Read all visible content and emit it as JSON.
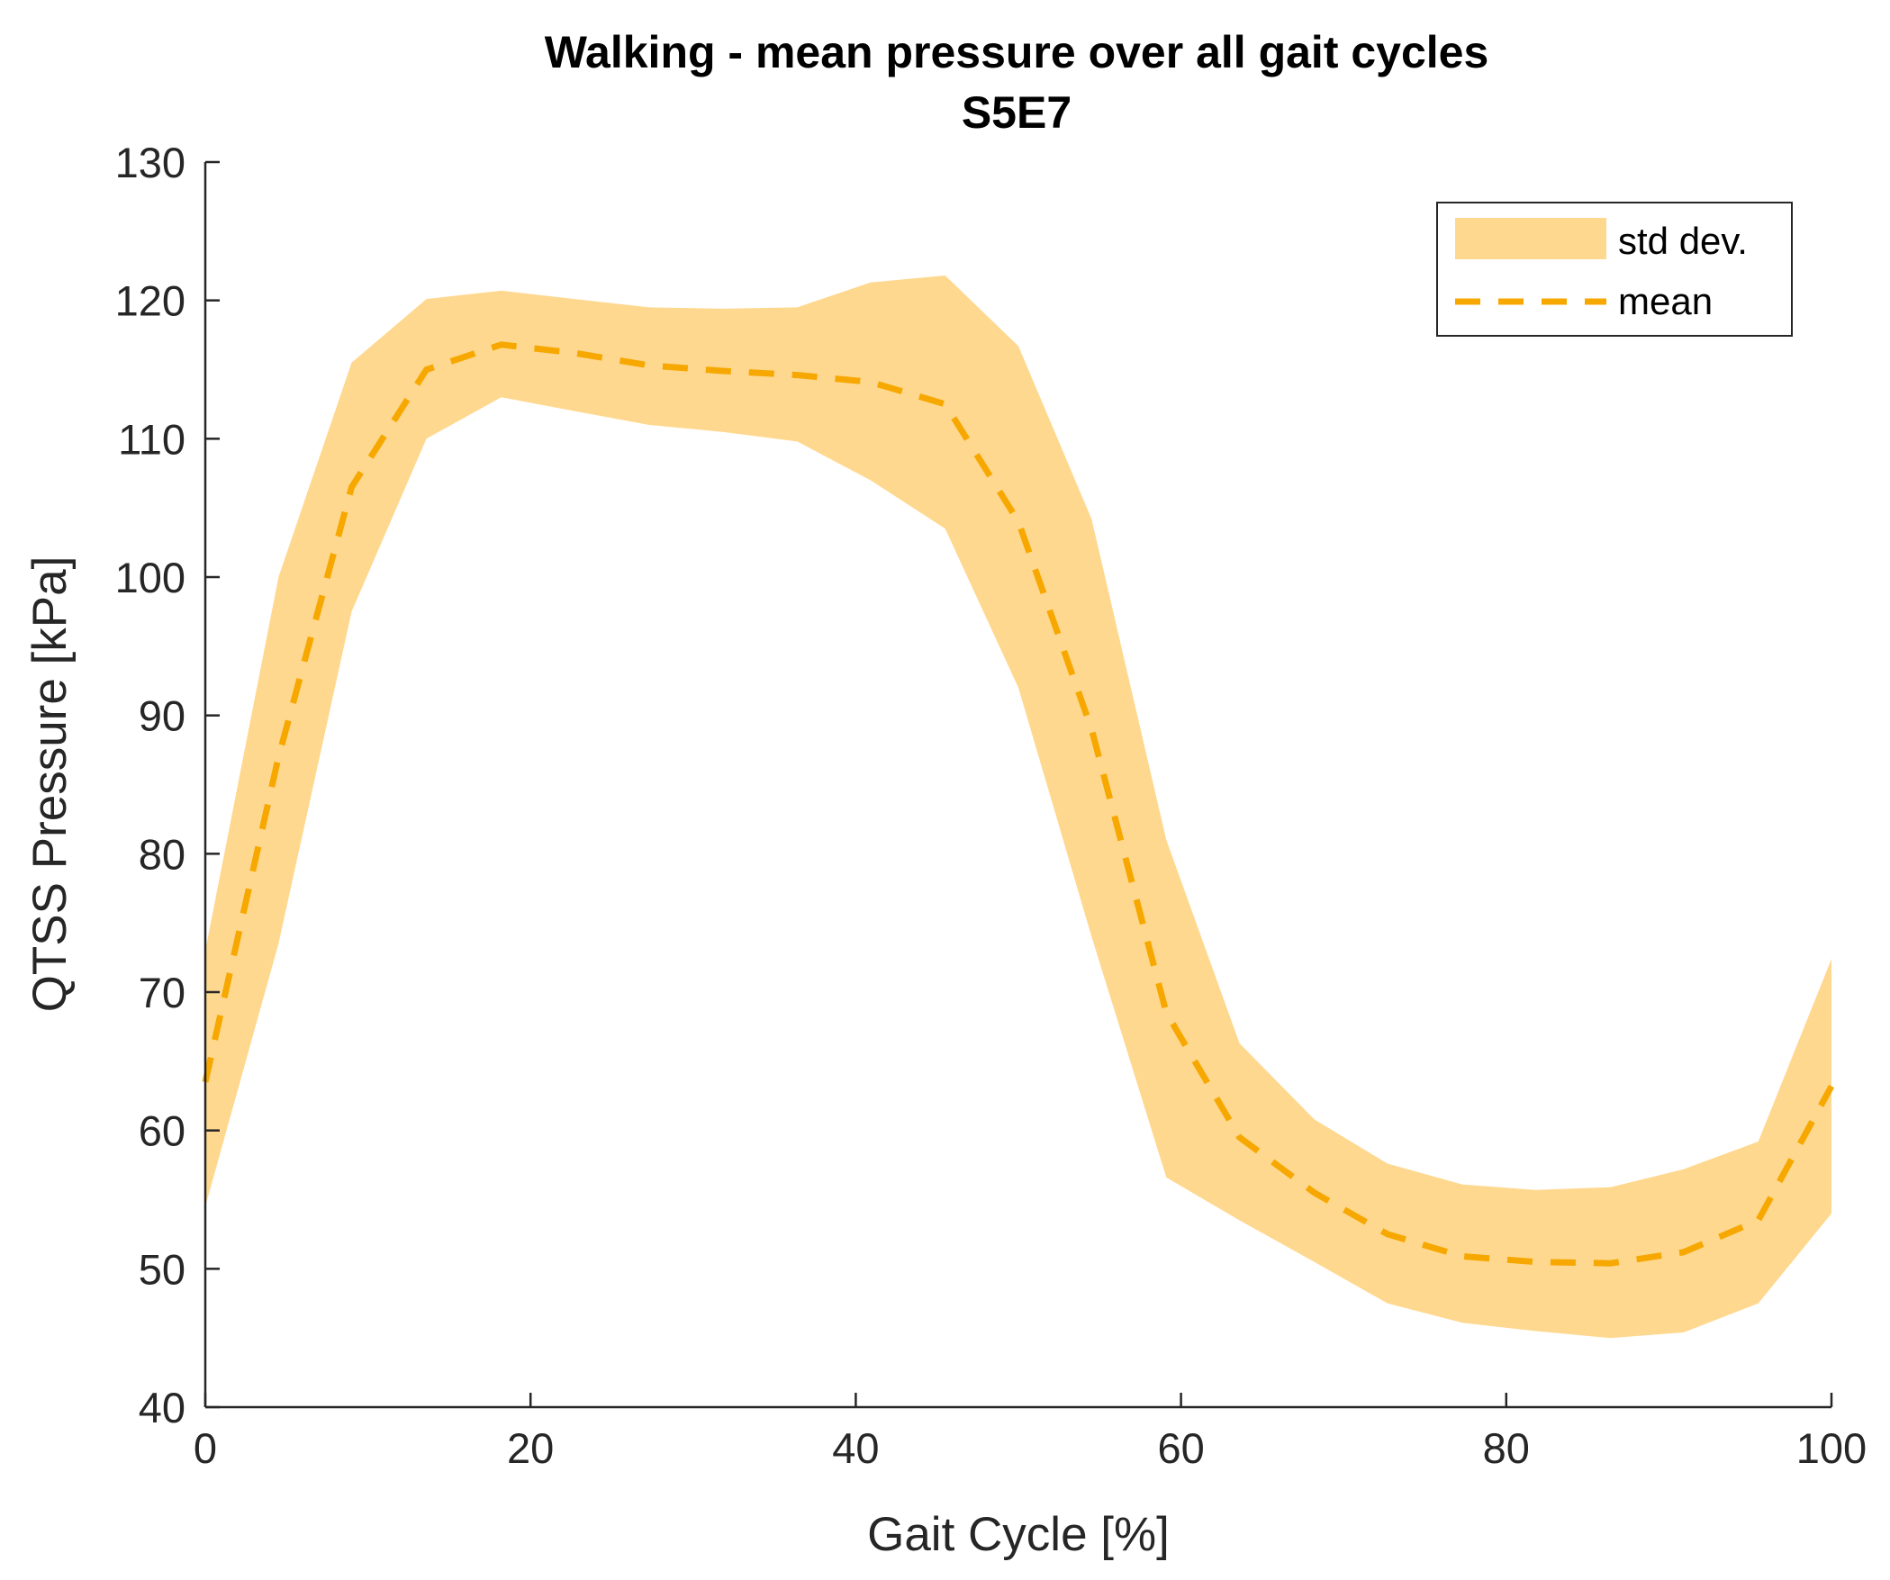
{
  "chart_data": {
    "type": "area",
    "title": "Walking - mean pressure over all gait cycles",
    "subtitle": "S5E7",
    "xlabel": "Gait Cycle [%]",
    "ylabel": "QTSS Pressure [kPa]",
    "xlim": [
      0,
      100
    ],
    "ylim": [
      40,
      130
    ],
    "xticks": [
      0,
      20,
      40,
      60,
      80,
      100
    ],
    "yticks": [
      40,
      50,
      60,
      70,
      80,
      90,
      100,
      110,
      120,
      130
    ],
    "grid": false,
    "legend": {
      "position": "top-right",
      "entries": [
        "std dev.",
        "mean"
      ]
    },
    "colors": {
      "band": "#ffd88f",
      "mean": "#f7a800",
      "axis": "#262626"
    },
    "x": [
      0,
      4.5,
      9,
      13.6,
      18.2,
      22.7,
      27.3,
      31.8,
      36.4,
      40.9,
      45.5,
      50,
      54.5,
      59.1,
      63.6,
      68.2,
      72.7,
      77.3,
      81.8,
      86.4,
      90.9,
      95.5,
      100
    ],
    "series": [
      {
        "name": "mean",
        "style": "dashed",
        "values": [
          63.5,
          87,
          106.5,
          115,
          116.8,
          116.2,
          115.3,
          114.9,
          114.6,
          114.1,
          112.5,
          104,
          89,
          68.5,
          59.5,
          55.5,
          52.5,
          50.9,
          50.5,
          50.4,
          51.2,
          53.5,
          63.2
        ]
      },
      {
        "name": "std dev.",
        "style": "band",
        "upper": [
          73,
          100,
          115.5,
          120.1,
          120.7,
          120.1,
          119.5,
          119.4,
          119.5,
          121.3,
          121.8,
          116.7,
          104.2,
          81,
          66.3,
          60.8,
          57.6,
          56.1,
          55.7,
          55.9,
          57.2,
          59.2,
          72.4
        ],
        "lower": [
          54.5,
          73.5,
          97.5,
          110,
          113,
          112,
          111,
          110.5,
          109.8,
          107,
          103.5,
          92,
          74,
          56.6,
          53.5,
          50.5,
          47.5,
          46.1,
          45.5,
          45,
          45.4,
          47.5,
          54
        ]
      }
    ]
  }
}
